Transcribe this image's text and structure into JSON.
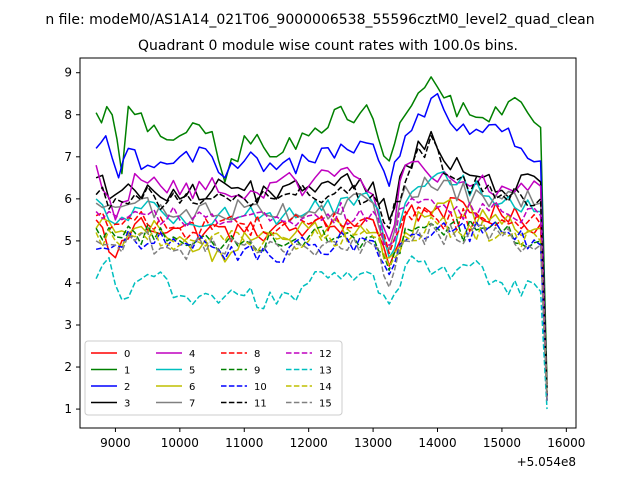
{
  "chart_data": {
    "type": "line",
    "suptitle": "n file: modeM0/AS1A14_021T06_9000006538_55596cztM0_level2_quad_clean",
    "title": "Quadrant 0 module wise count rates with 100.0s bins.",
    "xlabel": "",
    "ylabel": "",
    "x_offset_label": "+5.054e8",
    "xlim": [
      8450,
      16150
    ],
    "ylim": [
      0.55,
      9.35
    ],
    "xticks": [
      9000,
      10000,
      11000,
      12000,
      13000,
      14000,
      15000,
      16000
    ],
    "xtick_labels": [
      "9000",
      "10000",
      "11000",
      "12000",
      "13000",
      "14000",
      "15000",
      "16000"
    ],
    "yticks": [
      1,
      2,
      3,
      4,
      5,
      6,
      7,
      8,
      9
    ],
    "ytick_labels": [
      "1",
      "2",
      "3",
      "4",
      "5",
      "6",
      "7",
      "8",
      "9"
    ],
    "grid": false,
    "legend_position": "lower-left",
    "legend_columns": 4,
    "series": [
      {
        "name": "0",
        "color": "#ff0000",
        "dash": "solid",
        "anchors": [
          [
            8700,
            5.5
          ],
          [
            9000,
            4.6
          ],
          [
            9300,
            5.4
          ],
          [
            10000,
            5.3
          ],
          [
            11000,
            5.2
          ],
          [
            12000,
            5.3
          ],
          [
            13000,
            5.5
          ],
          [
            13250,
            4.4
          ],
          [
            13500,
            5.6
          ],
          [
            14000,
            5.8
          ],
          [
            15000,
            5.6
          ],
          [
            15600,
            5.4
          ],
          [
            15700,
            1.3
          ]
        ]
      },
      {
        "name": "1",
        "color": "#008000",
        "dash": "solid",
        "anchors": [
          [
            8700,
            8.05
          ],
          [
            8950,
            8.0
          ],
          [
            9100,
            6.6
          ],
          [
            9200,
            8.2
          ],
          [
            9500,
            7.6
          ],
          [
            10000,
            7.5
          ],
          [
            10500,
            7.6
          ],
          [
            10700,
            6.4
          ],
          [
            11000,
            7.5
          ],
          [
            11500,
            7.0
          ],
          [
            12000,
            7.5
          ],
          [
            12500,
            8.2
          ],
          [
            13000,
            7.9
          ],
          [
            13250,
            6.9
          ],
          [
            13500,
            8.0
          ],
          [
            13900,
            8.9
          ],
          [
            14100,
            8.4
          ],
          [
            14500,
            8.0
          ],
          [
            15000,
            8.0
          ],
          [
            15300,
            8.3
          ],
          [
            15600,
            7.7
          ],
          [
            15700,
            1.6
          ]
        ]
      },
      {
        "name": "2",
        "color": "#0000ff",
        "dash": "solid",
        "anchors": [
          [
            8700,
            7.2
          ],
          [
            8850,
            7.5
          ],
          [
            9050,
            6.5
          ],
          [
            9200,
            7.2
          ],
          [
            9500,
            6.8
          ],
          [
            10000,
            7.0
          ],
          [
            10500,
            7.0
          ],
          [
            10700,
            6.5
          ],
          [
            11000,
            6.9
          ],
          [
            11500,
            6.7
          ],
          [
            12000,
            6.9
          ],
          [
            12500,
            7.3
          ],
          [
            13000,
            7.3
          ],
          [
            13250,
            6.3
          ],
          [
            13500,
            7.5
          ],
          [
            14000,
            8.5
          ],
          [
            14200,
            7.8
          ],
          [
            15000,
            7.6
          ],
          [
            15300,
            7.2
          ],
          [
            15600,
            6.9
          ],
          [
            15700,
            1.2
          ]
        ]
      },
      {
        "name": "3",
        "color": "#000000",
        "dash": "solid",
        "anchors": [
          [
            8700,
            6.5
          ],
          [
            9000,
            6.1
          ],
          [
            9300,
            6.2
          ],
          [
            10000,
            6.0
          ],
          [
            10500,
            6.2
          ],
          [
            11000,
            6.2
          ],
          [
            11500,
            6.0
          ],
          [
            12000,
            6.3
          ],
          [
            12500,
            6.5
          ],
          [
            13000,
            6.4
          ],
          [
            13250,
            5.5
          ],
          [
            13500,
            6.8
          ],
          [
            13900,
            7.6
          ],
          [
            14100,
            6.9
          ],
          [
            15000,
            6.2
          ],
          [
            15600,
            6.4
          ],
          [
            15700,
            1.5
          ]
        ]
      },
      {
        "name": "4",
        "color": "#bf00bf",
        "dash": "solid",
        "anchors": [
          [
            8700,
            6.8
          ],
          [
            9000,
            5.5
          ],
          [
            9300,
            6.6
          ],
          [
            10000,
            6.1
          ],
          [
            10500,
            6.5
          ],
          [
            11000,
            6.0
          ],
          [
            11500,
            6.4
          ],
          [
            12000,
            6.3
          ],
          [
            12500,
            6.7
          ],
          [
            13000,
            6.1
          ],
          [
            13250,
            5.0
          ],
          [
            13500,
            6.8
          ],
          [
            14000,
            6.4
          ],
          [
            15000,
            6.3
          ],
          [
            15600,
            6.3
          ],
          [
            15700,
            1.3
          ]
        ]
      },
      {
        "name": "5",
        "color": "#00bfbf",
        "dash": "solid",
        "anchors": [
          [
            8700,
            6.0
          ],
          [
            9000,
            5.4
          ],
          [
            9300,
            5.8
          ],
          [
            10000,
            5.6
          ],
          [
            11000,
            5.6
          ],
          [
            12000,
            5.7
          ],
          [
            13000,
            5.9
          ],
          [
            13250,
            4.6
          ],
          [
            13500,
            5.9
          ],
          [
            14000,
            6.6
          ],
          [
            15000,
            5.9
          ],
          [
            15600,
            5.7
          ],
          [
            15700,
            1.4
          ]
        ]
      },
      {
        "name": "6",
        "color": "#bfbf00",
        "dash": "solid",
        "anchors": [
          [
            8700,
            5.3
          ],
          [
            9000,
            5.2
          ],
          [
            9300,
            5.3
          ],
          [
            10000,
            5.1
          ],
          [
            10700,
            4.5
          ],
          [
            11000,
            5.2
          ],
          [
            12000,
            5.3
          ],
          [
            13000,
            5.2
          ],
          [
            13250,
            4.6
          ],
          [
            13500,
            5.2
          ],
          [
            14000,
            5.9
          ],
          [
            15000,
            5.4
          ],
          [
            15600,
            5.3
          ],
          [
            15700,
            1.3
          ]
        ]
      },
      {
        "name": "7",
        "color": "#808080",
        "dash": "solid",
        "anchors": [
          [
            8700,
            5.9
          ],
          [
            9000,
            5.8
          ],
          [
            9300,
            5.9
          ],
          [
            10000,
            5.6
          ],
          [
            11000,
            5.8
          ],
          [
            12000,
            5.7
          ],
          [
            13000,
            5.9
          ],
          [
            13250,
            4.8
          ],
          [
            13500,
            6.3
          ],
          [
            14000,
            6.2
          ],
          [
            15000,
            6.0
          ],
          [
            15600,
            5.9
          ],
          [
            15700,
            1.3
          ]
        ]
      },
      {
        "name": "8",
        "color": "#ff0000",
        "dash": "dashed",
        "anchors": [
          [
            8700,
            5.6
          ],
          [
            9000,
            5.4
          ],
          [
            9300,
            5.5
          ],
          [
            10000,
            5.3
          ],
          [
            11000,
            5.4
          ],
          [
            12000,
            5.4
          ],
          [
            13000,
            5.5
          ],
          [
            13250,
            4.7
          ],
          [
            13500,
            5.7
          ],
          [
            14000,
            5.5
          ],
          [
            15000,
            5.5
          ],
          [
            15600,
            5.4
          ],
          [
            15700,
            1.3
          ]
        ]
      },
      {
        "name": "9",
        "color": "#008000",
        "dash": "dashed",
        "anchors": [
          [
            8700,
            5.3
          ],
          [
            9000,
            5.1
          ],
          [
            9300,
            5.2
          ],
          [
            10000,
            5.0
          ],
          [
            11000,
            5.0
          ],
          [
            12000,
            5.1
          ],
          [
            13000,
            5.1
          ],
          [
            13250,
            4.3
          ],
          [
            13500,
            5.3
          ],
          [
            14000,
            5.3
          ],
          [
            15000,
            5.2
          ],
          [
            15600,
            5.0
          ],
          [
            15700,
            1.3
          ]
        ]
      },
      {
        "name": "10",
        "color": "#0000ff",
        "dash": "dashed",
        "anchors": [
          [
            8700,
            4.8
          ],
          [
            9000,
            4.9
          ],
          [
            9300,
            5.0
          ],
          [
            10000,
            4.9
          ],
          [
            11000,
            4.8
          ],
          [
            11500,
            4.5
          ],
          [
            12000,
            4.9
          ],
          [
            13000,
            5.0
          ],
          [
            13250,
            4.2
          ],
          [
            13500,
            5.0
          ],
          [
            14000,
            5.3
          ],
          [
            15000,
            5.2
          ],
          [
            15600,
            4.9
          ],
          [
            15700,
            1.2
          ]
        ]
      },
      {
        "name": "11",
        "color": "#000000",
        "dash": "dashed",
        "anchors": [
          [
            8700,
            6.1
          ],
          [
            9000,
            6.0
          ],
          [
            9300,
            6.1
          ],
          [
            10000,
            5.9
          ],
          [
            11000,
            6.0
          ],
          [
            12000,
            6.1
          ],
          [
            13000,
            6.1
          ],
          [
            13250,
            5.3
          ],
          [
            13500,
            6.4
          ],
          [
            13900,
            7.5
          ],
          [
            14100,
            6.6
          ],
          [
            15000,
            6.1
          ],
          [
            15600,
            6.0
          ],
          [
            15700,
            1.4
          ]
        ]
      },
      {
        "name": "12",
        "color": "#bf00bf",
        "dash": "dashed",
        "anchors": [
          [
            8700,
            5.7
          ],
          [
            9000,
            5.6
          ],
          [
            9300,
            5.7
          ],
          [
            10000,
            5.5
          ],
          [
            11000,
            5.6
          ],
          [
            12000,
            5.6
          ],
          [
            13000,
            5.7
          ],
          [
            13250,
            4.9
          ],
          [
            13500,
            5.8
          ],
          [
            14000,
            5.8
          ],
          [
            15000,
            5.7
          ],
          [
            15600,
            5.6
          ],
          [
            15700,
            1.3
          ]
        ]
      },
      {
        "name": "13",
        "color": "#00bfbf",
        "dash": "dashed",
        "anchors": [
          [
            8700,
            4.1
          ],
          [
            8900,
            4.6
          ],
          [
            9100,
            3.6
          ],
          [
            9300,
            4.0
          ],
          [
            9500,
            4.2
          ],
          [
            10000,
            3.7
          ],
          [
            10500,
            3.7
          ],
          [
            11000,
            3.7
          ],
          [
            11500,
            3.5
          ],
          [
            12000,
            4.0
          ],
          [
            12500,
            4.1
          ],
          [
            13000,
            4.2
          ],
          [
            13250,
            3.5
          ],
          [
            13500,
            4.4
          ],
          [
            14000,
            4.3
          ],
          [
            14500,
            4.4
          ],
          [
            15000,
            4.0
          ],
          [
            15600,
            3.8
          ],
          [
            15700,
            1.0
          ]
        ]
      },
      {
        "name": "14",
        "color": "#bfbf00",
        "dash": "dashed",
        "anchors": [
          [
            8700,
            5.2
          ],
          [
            9000,
            5.0
          ],
          [
            9300,
            5.1
          ],
          [
            10000,
            4.9
          ],
          [
            11000,
            5.0
          ],
          [
            12000,
            5.0
          ],
          [
            13000,
            5.1
          ],
          [
            13250,
            4.4
          ],
          [
            13500,
            5.1
          ],
          [
            14000,
            5.4
          ],
          [
            15000,
            5.2
          ],
          [
            15600,
            5.0
          ],
          [
            15700,
            1.3
          ]
        ]
      },
      {
        "name": "15",
        "color": "#808080",
        "dash": "dashed",
        "anchors": [
          [
            8700,
            5.0
          ],
          [
            9000,
            4.9
          ],
          [
            9300,
            5.0
          ],
          [
            10000,
            4.8
          ],
          [
            11000,
            4.9
          ],
          [
            12000,
            4.8
          ],
          [
            13000,
            4.9
          ],
          [
            13250,
            3.9
          ],
          [
            13500,
            5.0
          ],
          [
            14000,
            5.2
          ],
          [
            15000,
            5.1
          ],
          [
            15600,
            4.9
          ],
          [
            15700,
            1.2
          ]
        ]
      }
    ]
  }
}
